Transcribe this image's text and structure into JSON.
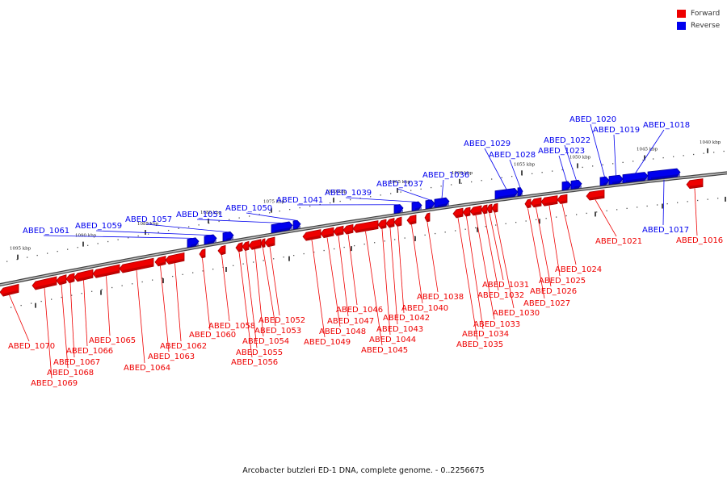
{
  "legend": [
    {
      "label": "Forward",
      "color": "#ee0000"
    },
    {
      "label": "Reverse",
      "color": "#0000ee"
    }
  ],
  "caption": "Arcobacter butzleri ED-1 DNA, complete genome. - 0..2256675",
  "colors": {
    "forward": "#ee0000",
    "forward_dark": "#a80000",
    "reverse": "#0000ee",
    "reverse_dark": "#0000a0",
    "backbone": "#777777"
  },
  "ticks": [
    "1095 kbp",
    "1090 kbp",
    "1085 kbp",
    "1080 kbp",
    "1075 kbp",
    "1070 kbp",
    "1065 kbp",
    "1060 kbp",
    "1055 kbp",
    "1050 kbp",
    "1045 kbp",
    "1040 kbp"
  ],
  "genes_forward": [
    "ABED_1070",
    "ABED_1069",
    "ABED_1068",
    "ABED_1067",
    "ABED_1066",
    "ABED_1065",
    "ABED_1064",
    "ABED_1063",
    "ABED_1062",
    "ABED_1060",
    "ABED_1058",
    "ABED_1056",
    "ABED_1055",
    "ABED_1054",
    "ABED_1053",
    "ABED_1052",
    "ABED_1049",
    "ABED_1048",
    "ABED_1047",
    "ABED_1046",
    "ABED_1045",
    "ABED_1044",
    "ABED_1043",
    "ABED_1042",
    "ABED_1040",
    "ABED_1038",
    "ABED_1035",
    "ABED_1034",
    "ABED_1033",
    "ABED_1032",
    "ABED_1031",
    "ABED_1030",
    "ABED_1027",
    "ABED_1026",
    "ABED_1025",
    "ABED_1024",
    "ABED_1021",
    "ABED_1016"
  ],
  "genes_reverse": [
    "ABED_1061",
    "ABED_1059",
    "ABED_1057",
    "ABED_1051",
    "ABED_1050",
    "ABED_1041",
    "ABED_1039",
    "ABED_1037",
    "ABED_1036",
    "ABED_1029",
    "ABED_1028",
    "ABED_1023",
    "ABED_1022",
    "ABED_1020",
    "ABED_1019",
    "ABED_1018",
    "ABED_1017"
  ]
}
